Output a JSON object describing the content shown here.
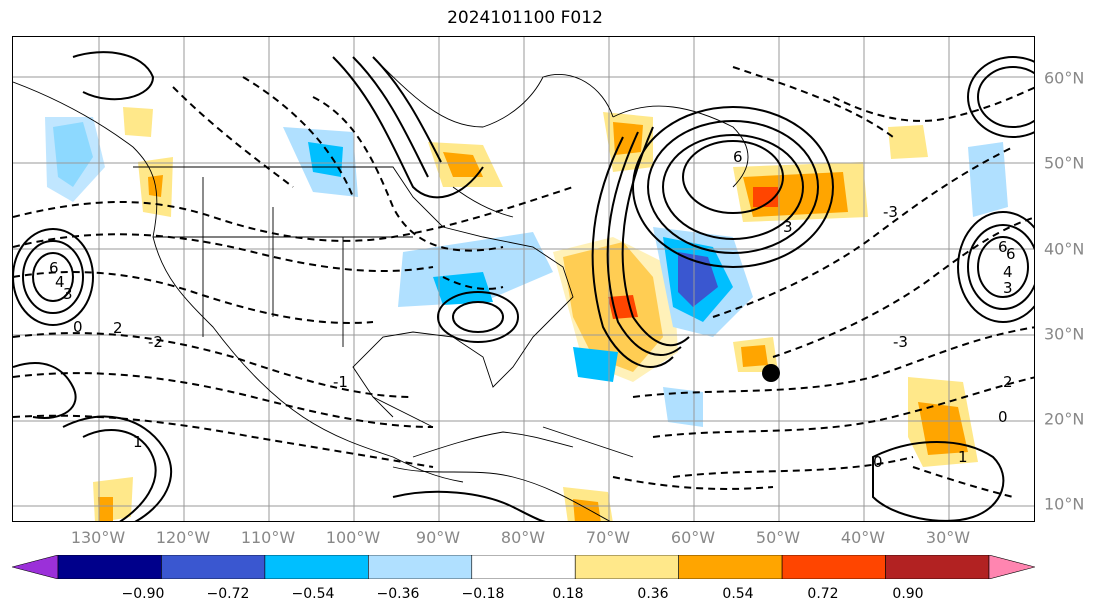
{
  "title": "2024101100 F012",
  "lat_labels": [
    "60°N",
    "50°N",
    "40°N",
    "30°N",
    "20°N",
    "10°N"
  ],
  "lon_labels": [
    "130°W",
    "120°W",
    "110°W",
    "100°W",
    "90°W",
    "80°W",
    "70°W",
    "60°W",
    "50°W",
    "40°W",
    "30°W"
  ],
  "colorbar": {
    "ticks": [
      "−0.90",
      "−0.72",
      "−0.54",
      "−0.36",
      "−0.18",
      "0.18",
      "0.36",
      "0.54",
      "0.72",
      "0.90"
    ],
    "colors": [
      "#9b30d9",
      "#00008b",
      "#3a57d0",
      "#00bfff",
      "#b0e0ff",
      "#ffffff",
      "#ffe88a",
      "#ffa500",
      "#ff4500",
      "#b22222",
      "#ff85b0"
    ]
  },
  "contour_labels": [
    "6",
    "6",
    "6",
    "4",
    "3",
    "2",
    "1",
    "0",
    "-2",
    "-3",
    "-1",
    "2",
    "0",
    "-3",
    "3",
    "1",
    "0",
    "6",
    "4",
    "3"
  ],
  "storm_marker": "hurricane-center"
}
